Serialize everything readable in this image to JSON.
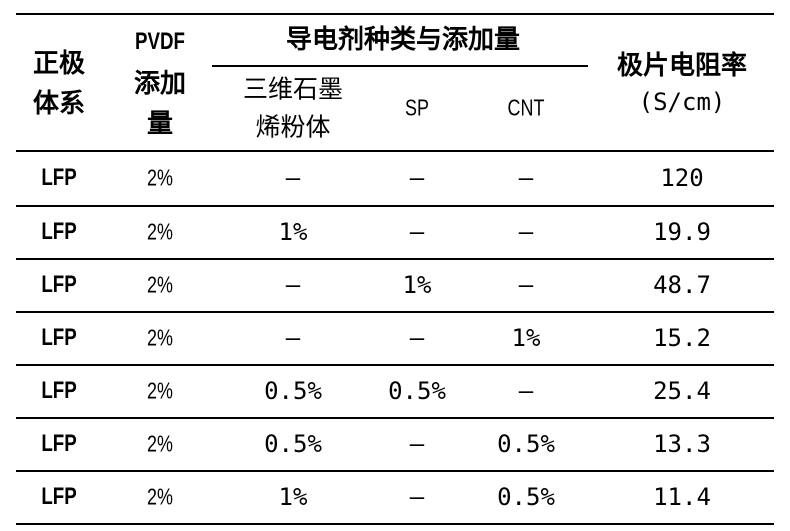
{
  "table": {
    "headers": {
      "cathode_system": [
        "正极",
        "体系"
      ],
      "pvdf_amount": [
        "PVDF",
        "添加",
        "量"
      ],
      "conductive_agent_group": "导电剂种类与添加量",
      "graphene": [
        "三维石墨",
        "烯粉体"
      ],
      "sp": "SP",
      "cnt": "CNT",
      "resistivity": [
        "极片电阻率",
        "(S/cm)"
      ]
    },
    "rows": [
      {
        "system": "LFP",
        "pvdf": "2%",
        "graphene": "–",
        "sp": "–",
        "cnt": "–",
        "resistivity": "120"
      },
      {
        "system": "LFP",
        "pvdf": "2%",
        "graphene": "1%",
        "sp": "–",
        "cnt": "–",
        "resistivity": "19.9"
      },
      {
        "system": "LFP",
        "pvdf": "2%",
        "graphene": "–",
        "sp": "1%",
        "cnt": "–",
        "resistivity": "48.7"
      },
      {
        "system": "LFP",
        "pvdf": "2%",
        "graphene": "–",
        "sp": "–",
        "cnt": "1%",
        "resistivity": "15.2"
      },
      {
        "system": "LFP",
        "pvdf": "2%",
        "graphene": "0.5%",
        "sp": "0.5%",
        "cnt": "–",
        "resistivity": "25.4"
      },
      {
        "system": "LFP",
        "pvdf": "2%",
        "graphene": "0.5%",
        "sp": "–",
        "cnt": "0.5%",
        "resistivity": "13.3"
      },
      {
        "system": "LFP",
        "pvdf": "2%",
        "graphene": "1%",
        "sp": "–",
        "cnt": "0.5%",
        "resistivity": "11.4"
      }
    ]
  }
}
